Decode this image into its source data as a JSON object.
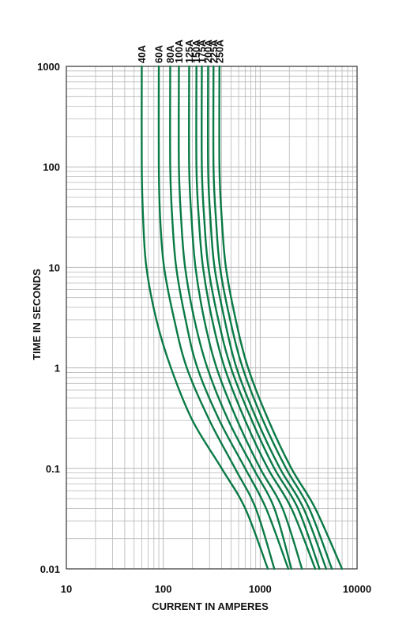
{
  "chart_data": {
    "type": "line",
    "xlabel": "CURRENT IN AMPERES",
    "ylabel": "TIME IN SECONDS",
    "x_scale": "log",
    "y_scale": "log",
    "xlim": [
      10,
      10000
    ],
    "ylim": [
      0.01,
      1000
    ],
    "x_ticks": [
      "10",
      "100",
      "1000",
      "10000"
    ],
    "y_ticks": [
      "1000",
      "100",
      "10",
      "1",
      "0.1",
      "0.01"
    ],
    "grid": true,
    "line_color": "#0a7a45",
    "grid_color": "#b8b8b8",
    "legend": "labels at top of each curve, rotated",
    "series": [
      {
        "name": "40A",
        "points": [
          [
            60,
            1000
          ],
          [
            60,
            100
          ],
          [
            62,
            30
          ],
          [
            67,
            10
          ],
          [
            85,
            3
          ],
          [
            120,
            1
          ],
          [
            200,
            0.3
          ],
          [
            400,
            0.1
          ],
          [
            700,
            0.04
          ],
          [
            1200,
            0.01
          ]
        ]
      },
      {
        "name": "60A",
        "points": [
          [
            90,
            1000
          ],
          [
            90,
            100
          ],
          [
            93,
            30
          ],
          [
            102,
            10
          ],
          [
            130,
            3
          ],
          [
            175,
            1
          ],
          [
            300,
            0.3
          ],
          [
            550,
            0.1
          ],
          [
            900,
            0.04
          ],
          [
            1400,
            0.01
          ]
        ]
      },
      {
        "name": "80A",
        "points": [
          [
            118,
            1000
          ],
          [
            118,
            100
          ],
          [
            124,
            30
          ],
          [
            136,
            10
          ],
          [
            170,
            3
          ],
          [
            225,
            1
          ],
          [
            380,
            0.3
          ],
          [
            700,
            0.1
          ],
          [
            1150,
            0.04
          ],
          [
            1950,
            0.01
          ]
        ]
      },
      {
        "name": "100A",
        "points": [
          [
            145,
            1000
          ],
          [
            145,
            100
          ],
          [
            153,
            30
          ],
          [
            168,
            10
          ],
          [
            210,
            3
          ],
          [
            285,
            1
          ],
          [
            470,
            0.3
          ],
          [
            850,
            0.1
          ],
          [
            1400,
            0.04
          ],
          [
            2100,
            0.01
          ]
        ]
      },
      {
        "name": "125A",
        "points": [
          [
            185,
            1000
          ],
          [
            185,
            100
          ],
          [
            196,
            30
          ],
          [
            215,
            10
          ],
          [
            265,
            3
          ],
          [
            355,
            1
          ],
          [
            580,
            0.3
          ],
          [
            1000,
            0.1
          ],
          [
            1700,
            0.04
          ],
          [
            2700,
            0.01
          ]
        ]
      },
      {
        "name": "150A",
        "points": [
          [
            220,
            1000
          ],
          [
            220,
            100
          ],
          [
            233,
            30
          ],
          [
            257,
            10
          ],
          [
            320,
            3
          ],
          [
            430,
            1
          ],
          [
            700,
            0.3
          ],
          [
            1200,
            0.1
          ],
          [
            2100,
            0.04
          ],
          [
            3700,
            0.01
          ]
        ]
      },
      {
        "name": "175A",
        "points": [
          [
            250,
            1000
          ],
          [
            250,
            100
          ],
          [
            265,
            30
          ],
          [
            292,
            10
          ],
          [
            370,
            3
          ],
          [
            500,
            1
          ],
          [
            820,
            0.3
          ],
          [
            1400,
            0.1
          ],
          [
            2450,
            0.04
          ],
          [
            4100,
            0.01
          ]
        ]
      },
      {
        "name": "200A",
        "points": [
          [
            290,
            1000
          ],
          [
            290,
            100
          ],
          [
            307,
            30
          ],
          [
            338,
            10
          ],
          [
            430,
            3
          ],
          [
            570,
            1
          ],
          [
            930,
            0.3
          ],
          [
            1600,
            0.1
          ],
          [
            2800,
            0.04
          ],
          [
            4800,
            0.01
          ]
        ]
      },
      {
        "name": "225A",
        "points": [
          [
            330,
            1000
          ],
          [
            330,
            100
          ],
          [
            350,
            30
          ],
          [
            385,
            10
          ],
          [
            490,
            3
          ],
          [
            660,
            1
          ],
          [
            1070,
            0.3
          ],
          [
            1850,
            0.1
          ],
          [
            3200,
            0.04
          ],
          [
            5500,
            0.01
          ]
        ]
      },
      {
        "name": "250A",
        "points": [
          [
            380,
            1000
          ],
          [
            380,
            100
          ],
          [
            402,
            30
          ],
          [
            443,
            10
          ],
          [
            560,
            3
          ],
          [
            750,
            1
          ],
          [
            1220,
            0.3
          ],
          [
            2100,
            0.1
          ],
          [
            3700,
            0.04
          ],
          [
            7000,
            0.01
          ]
        ]
      }
    ]
  }
}
